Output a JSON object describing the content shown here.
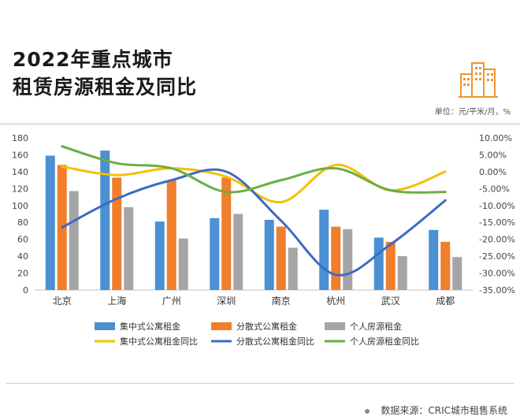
{
  "title_line1": "2022年重点城市",
  "title_line2": "租赁房源租金及同比",
  "unit": "单位：元/平米/月，%",
  "source": "数据来源：CRIC城市租售系统",
  "icon": "buildings-icon",
  "colors": {
    "accent": "#F2922F",
    "bar1": "#4A90D2",
    "bar2": "#F07E2A",
    "bar3": "#A5A5A5",
    "line1": "#F5C000",
    "line2": "#3D6BC4",
    "line3": "#6AAE46"
  },
  "chart_data": {
    "type": "bar+line",
    "categories": [
      "北京",
      "上海",
      "广州",
      "深圳",
      "南京",
      "杭州",
      "武汉",
      "成都"
    ],
    "y_left": {
      "min": 0,
      "max": 180,
      "ticks": [
        0,
        20,
        40,
        60,
        80,
        100,
        120,
        140,
        160,
        180
      ]
    },
    "y_right": {
      "min": -35,
      "max": 10,
      "ticks": [
        "10.00%",
        "5.00%",
        "0.00%",
        "-5.00%",
        "-10.00%",
        "-15.00%",
        "-20.00%",
        "-25.00%",
        "-30.00%",
        "-35.00%"
      ]
    },
    "bars": [
      {
        "name": "集中式公寓租金",
        "values": [
          159,
          165,
          81,
          85,
          83,
          95,
          62,
          71
        ]
      },
      {
        "name": "分散式公寓租金",
        "values": [
          148,
          133,
          130,
          133,
          75,
          75,
          57,
          57
        ]
      },
      {
        "name": "个人房源租金",
        "values": [
          117,
          98,
          61,
          90,
          50,
          72,
          40,
          39
        ]
      }
    ],
    "lines": [
      {
        "name": "集中式公寓租金同比",
        "values": [
          1.5,
          -1.0,
          1.0,
          -1.5,
          -9.0,
          2.0,
          -5.5,
          0.0
        ]
      },
      {
        "name": "分散式公寓租金同比",
        "values": [
          -16.5,
          -8.0,
          -2.5,
          0.0,
          -14.5,
          -30.5,
          -21.5,
          -8.5
        ]
      },
      {
        "name": "个人房源租金同比",
        "values": [
          7.5,
          2.5,
          1.0,
          -6.0,
          -2.5,
          1.0,
          -5.5,
          -6.0
        ]
      }
    ],
    "legend_position": "bottom",
    "grid": false
  }
}
